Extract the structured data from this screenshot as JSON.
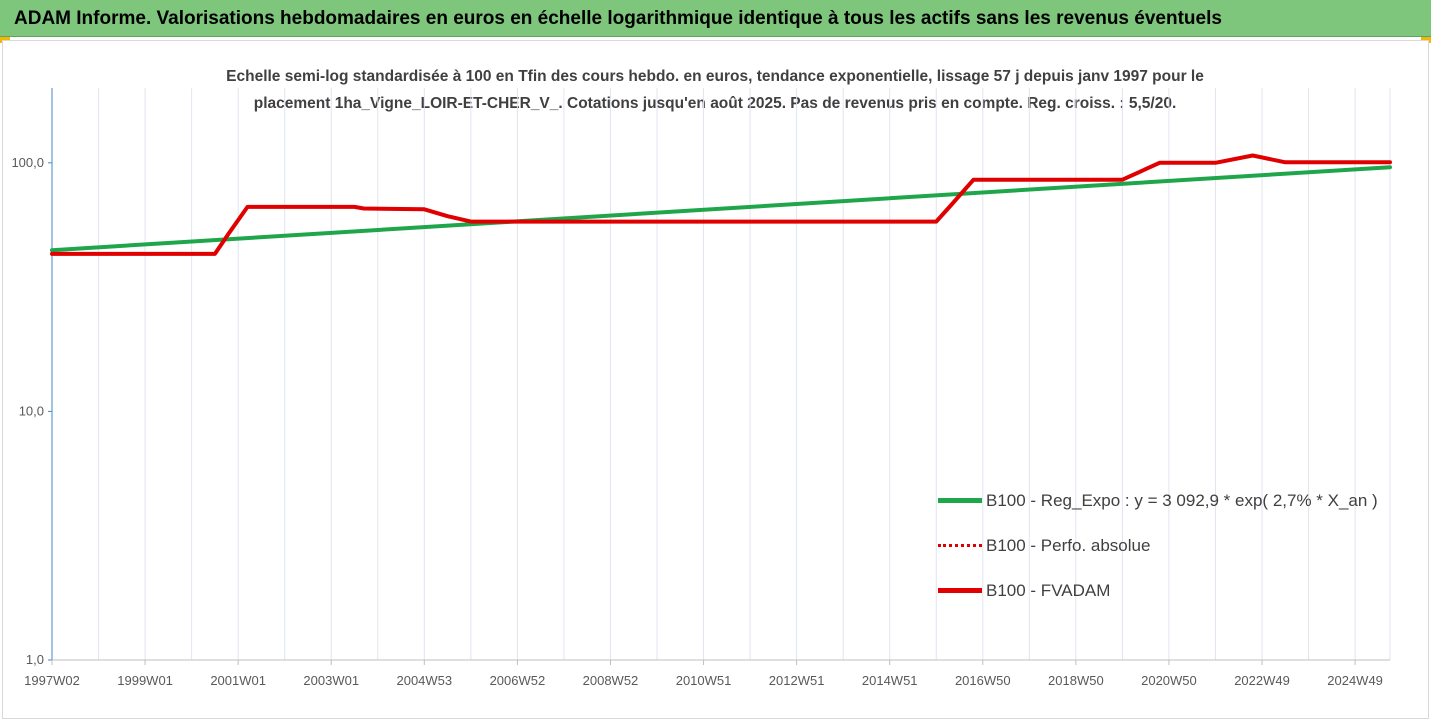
{
  "banner": {
    "title": "ADAM Informe. Valorisations hebdomadaires en euros en échelle logarithmique identique à tous les actifs sans les revenus éventuels"
  },
  "chart_data": {
    "type": "line",
    "title_line1": "Echelle semi-log standardisée à 100 en Tfin des cours hebdo. en euros, tendance exponentielle, lissage 57 j depuis janv 1997 pour le",
    "title_line2": "placement 1ha_Vigne_LOIR-ET-CHER_V_. Cotations jusqu'en août 2025. Pas de revenus pris en compte. Reg. croiss. : 5,5/20.",
    "y_scale": "log",
    "ylim": [
      1,
      200
    ],
    "y_ticks": [
      {
        "value": 1,
        "label": "1,0"
      },
      {
        "value": 10,
        "label": "10,0"
      },
      {
        "value": 100,
        "label": "100,0"
      }
    ],
    "x_range": [
      1997.0,
      2025.75
    ],
    "x_ticks": [
      {
        "value": 1997.0,
        "label": "1997W02"
      },
      {
        "value": 1999.0,
        "label": "1999W01"
      },
      {
        "value": 2001.0,
        "label": "2001W01"
      },
      {
        "value": 2003.0,
        "label": "2003W01"
      },
      {
        "value": 2005.0,
        "label": "2004W53"
      },
      {
        "value": 2007.0,
        "label": "2006W52"
      },
      {
        "value": 2009.0,
        "label": "2008W52"
      },
      {
        "value": 2011.0,
        "label": "2010W51"
      },
      {
        "value": 2013.0,
        "label": "2012W51"
      },
      {
        "value": 2015.0,
        "label": "2014W51"
      },
      {
        "value": 2017.0,
        "label": "2016W50"
      },
      {
        "value": 2019.0,
        "label": "2018W50"
      },
      {
        "value": 2021.0,
        "label": "2020W50"
      },
      {
        "value": 2023.0,
        "label": "2022W49"
      },
      {
        "value": 2025.0,
        "label": "2024W49"
      }
    ],
    "grid": "vertical",
    "legend_position": "right",
    "series": [
      {
        "name": "B100 - Reg_Expo : y = 3 092,9 * exp( 2,7% *  X_an )",
        "color": "#1fa64a",
        "style": "solid",
        "points": [
          [
            1997.0,
            44.5
          ],
          [
            2025.75,
            96.0
          ]
        ]
      },
      {
        "name": "B100 - Perfo. absolue",
        "color": "#e00000",
        "style": "dotted",
        "points": [
          [
            1997.0,
            43.0
          ],
          [
            2000.5,
            43.0
          ],
          [
            2000.8,
            52.0
          ],
          [
            2001.2,
            66.5
          ],
          [
            2003.5,
            66.5
          ],
          [
            2003.7,
            65.5
          ],
          [
            2005.0,
            65.0
          ],
          [
            2005.5,
            61.0
          ],
          [
            2006.0,
            58.0
          ],
          [
            2016.0,
            58.0
          ],
          [
            2016.3,
            67.0
          ],
          [
            2016.8,
            85.5
          ],
          [
            2020.0,
            85.5
          ],
          [
            2020.8,
            100.0
          ],
          [
            2022.0,
            100.0
          ],
          [
            2022.8,
            107.0
          ],
          [
            2023.5,
            100.5
          ],
          [
            2025.75,
            100.5
          ]
        ]
      },
      {
        "name": "B100 - FVADAM",
        "color": "#e00000",
        "style": "solid",
        "points": [
          [
            1997.0,
            43.0
          ],
          [
            2000.5,
            43.0
          ],
          [
            2000.8,
            52.0
          ],
          [
            2001.2,
            66.5
          ],
          [
            2003.5,
            66.5
          ],
          [
            2003.7,
            65.5
          ],
          [
            2005.0,
            65.0
          ],
          [
            2005.5,
            61.0
          ],
          [
            2006.0,
            58.0
          ],
          [
            2016.0,
            58.0
          ],
          [
            2016.3,
            67.0
          ],
          [
            2016.8,
            85.5
          ],
          [
            2020.0,
            85.5
          ],
          [
            2020.8,
            100.0
          ],
          [
            2022.0,
            100.0
          ],
          [
            2022.8,
            107.0
          ],
          [
            2023.5,
            100.5
          ],
          [
            2025.75,
            100.5
          ]
        ]
      }
    ]
  }
}
